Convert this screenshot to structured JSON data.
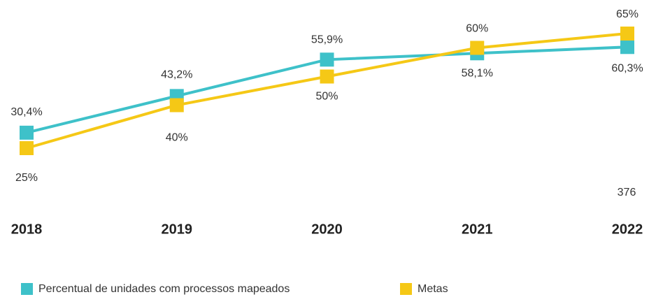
{
  "chart_data": {
    "type": "line",
    "categories": [
      "2018",
      "2019",
      "2020",
      "2021",
      "2022"
    ],
    "series": [
      {
        "name": "Percentual de unidades com processos mapeados",
        "color": "#3ec1c9",
        "values": [
          30.4,
          43.2,
          55.9,
          58.1,
          60.3
        ],
        "value_labels": [
          "30,4%",
          "43,2%",
          "55,9%",
          "58,1%",
          "60,3%"
        ]
      },
      {
        "name": "Metas",
        "color": "#f5c816",
        "values": [
          25,
          40,
          50,
          60,
          65
        ],
        "value_labels": [
          "25%",
          "40%",
          "50%",
          "60%",
          "65%"
        ]
      }
    ],
    "annotations": [
      "376"
    ]
  }
}
